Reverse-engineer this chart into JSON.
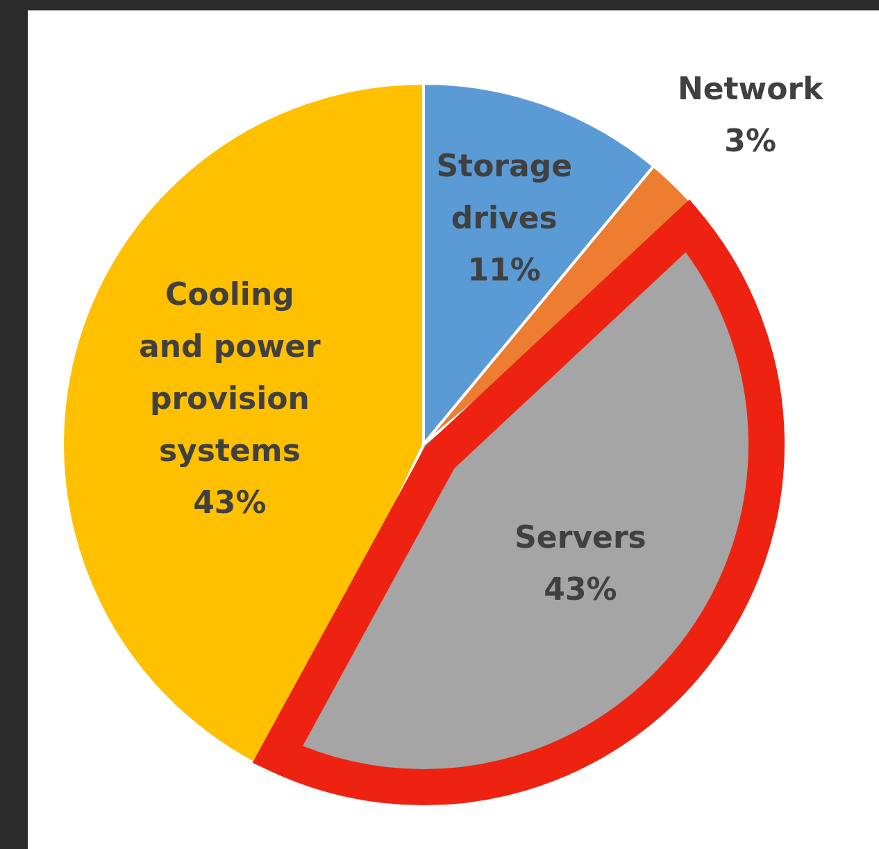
{
  "chart_data": {
    "type": "pie",
    "categories": [
      "Storage drives",
      "Network",
      "Servers",
      "Cooling and power provision systems"
    ],
    "values": [
      11,
      3,
      43,
      43
    ],
    "colors": [
      "#5b9bd5",
      "#ed7d31",
      "#a5a5a5",
      "#ffc000"
    ],
    "value_labels": [
      "11%",
      "3%",
      "43%",
      "43%"
    ],
    "legend": false
  }
}
